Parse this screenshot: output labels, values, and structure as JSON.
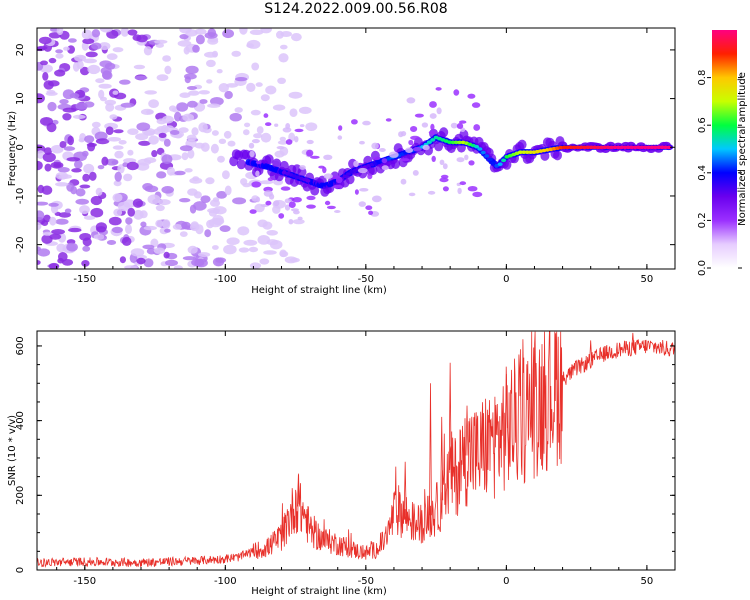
{
  "title": "S124.2022.009.00.56.R08",
  "chart_data": [
    {
      "type": "heatmap",
      "xlabel": "Height of straight line (km)",
      "ylabel": "Frequency (Hz)",
      "xlim": [
        -167,
        60
      ],
      "ylim": [
        -25,
        24.5
      ],
      "xticks": [
        -150,
        -100,
        -50,
        0,
        50
      ],
      "yticks": [
        -20,
        -10,
        0,
        10,
        20
      ],
      "colorbar": {
        "label": "Normalized spectral amplitude",
        "range": [
          0,
          1
        ],
        "ticks": [
          0.0,
          0.2,
          0.4,
          0.6,
          0.8
        ],
        "colors": [
          "#ffffff",
          "#e6ccff",
          "#9b30ff",
          "#6a00ee",
          "#0000ff",
          "#00c8ff",
          "#00ff40",
          "#c8ff00",
          "#ffc800",
          "#ff2000",
          "#ff0080"
        ]
      },
      "ridge": {
        "x": [
          -97,
          -92,
          -85,
          -80,
          -75,
          -70,
          -65,
          -60,
          -55,
          -50,
          -45,
          -40,
          -35,
          -30,
          -25,
          -20,
          -15,
          -10,
          -5,
          -3,
          0,
          5,
          10,
          15,
          20,
          30,
          40,
          50,
          58
        ],
        "y": [
          -2,
          -3,
          -4,
          -5,
          -6,
          -7,
          -8,
          -7,
          -5,
          -4,
          -3,
          -2,
          -1,
          0,
          2,
          1,
          1,
          0,
          -3,
          -4,
          -2,
          -1,
          -1,
          -0.5,
          0,
          0,
          0,
          0,
          0
        ],
        "amplitude": [
          0.15,
          0.2,
          0.25,
          0.3,
          0.35,
          0.3,
          0.25,
          0.3,
          0.35,
          0.3,
          0.4,
          0.45,
          0.4,
          0.5,
          0.55,
          0.6,
          0.7,
          0.5,
          0.4,
          0.45,
          0.6,
          0.7,
          0.75,
          0.8,
          0.9,
          0.95,
          1.0,
          1.0,
          1.0
        ]
      },
      "noise_region": {
        "x": [
          -167,
          -95
        ],
        "y": [
          -25,
          24.5
        ],
        "amplitude_max": 0.1
      }
    },
    {
      "type": "line",
      "xlabel": "Height of straight line (km)",
      "ylabel": "SNR (10 * v/v)",
      "xlim": [
        -167,
        60
      ],
      "ylim": [
        0,
        640
      ],
      "xticks": [
        -150,
        -100,
        -50,
        0,
        50
      ],
      "yticks": [
        0,
        200,
        400,
        600
      ],
      "color": "#e8302a",
      "series": [
        {
          "x": [
            -167,
            -150,
            -130,
            -110,
            -100,
            -95,
            -90,
            -85,
            -80,
            -78,
            -75,
            -72,
            -70,
            -65,
            -60,
            -55,
            -50,
            -45,
            -42,
            -40,
            -38,
            -35,
            -32,
            -30,
            -28,
            -25,
            -22,
            -20,
            -18,
            -15,
            -12,
            -10,
            -8,
            -5,
            -2,
            0,
            2,
            5,
            10,
            15,
            20,
            25,
            30,
            35,
            40,
            45,
            50,
            55,
            60
          ],
          "y": [
            20,
            22,
            20,
            25,
            30,
            35,
            50,
            60,
            90,
            120,
            180,
            150,
            110,
            80,
            70,
            55,
            45,
            60,
            100,
            150,
            160,
            140,
            120,
            130,
            140,
            160,
            200,
            260,
            250,
            300,
            320,
            300,
            330,
            340,
            360,
            380,
            390,
            400,
            440,
            480,
            510,
            540,
            560,
            580,
            590,
            595,
            600,
            595,
            590
          ]
        }
      ],
      "spikes": [
        {
          "x": -74,
          "y": 255
        },
        {
          "x": -36,
          "y": 290
        },
        {
          "x": -27,
          "y": 500
        },
        {
          "x": -23,
          "y": 410
        },
        {
          "x": -20,
          "y": 555
        },
        {
          "x": -14,
          "y": 440
        },
        {
          "x": 0,
          "y": 525
        },
        {
          "x": 30,
          "y": 615
        },
        {
          "x": 45,
          "y": 635
        }
      ]
    }
  ]
}
